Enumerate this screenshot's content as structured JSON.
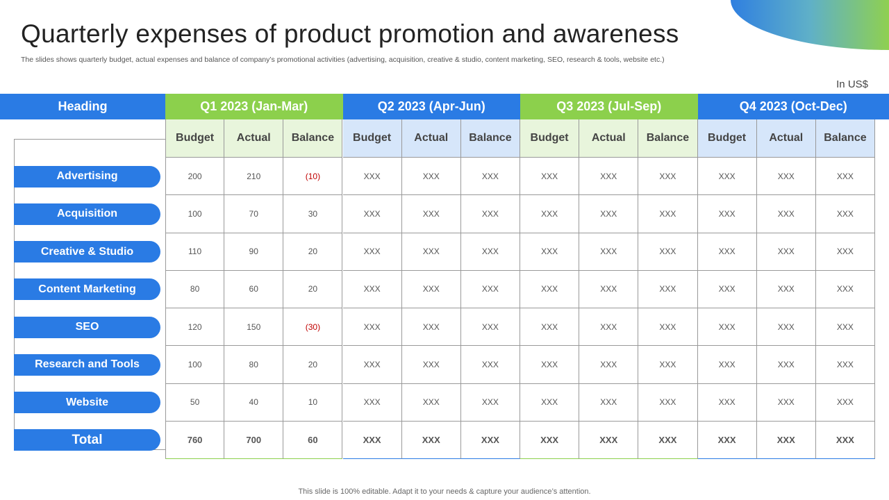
{
  "title": "Quarterly expenses of product promotion and awareness",
  "subtitle": "The slides shows quarterly budget, actual expenses and balance of company’s promotional activities (advertising, acquisition, creative & studio, content marketing, SEO, research & tools, website etc.)",
  "unit": "In US$",
  "heading": "Heading",
  "quarters": [
    "Q1 2023 (Jan-Mar)",
    "Q2 2023 (Apr-Jun)",
    "Q3 2023 (Jul-Sep)",
    "Q4 2023 (Oct-Dec)"
  ],
  "subheaders": [
    "Budget",
    "Actual",
    "Balance"
  ],
  "rows": [
    {
      "label": "Advertising",
      "values": [
        "200",
        "210",
        "(10)",
        "XXX",
        "XXX",
        "XXX",
        "XXX",
        "XXX",
        "XXX",
        "XXX",
        "XXX",
        "XXX"
      ]
    },
    {
      "label": "Acquisition",
      "values": [
        "100",
        "70",
        "30",
        "XXX",
        "XXX",
        "XXX",
        "XXX",
        "XXX",
        "XXX",
        "XXX",
        "XXX",
        "XXX"
      ]
    },
    {
      "label": "Creative & Studio",
      "values": [
        "110",
        "90",
        "20",
        "XXX",
        "XXX",
        "XXX",
        "XXX",
        "XXX",
        "XXX",
        "XXX",
        "XXX",
        "XXX"
      ]
    },
    {
      "label": "Content Marketing",
      "values": [
        "80",
        "60",
        "20",
        "XXX",
        "XXX",
        "XXX",
        "XXX",
        "XXX",
        "XXX",
        "XXX",
        "XXX",
        "XXX"
      ]
    },
    {
      "label": "SEO",
      "values": [
        "120",
        "150",
        "(30)",
        "XXX",
        "XXX",
        "XXX",
        "XXX",
        "XXX",
        "XXX",
        "XXX",
        "XXX",
        "XXX"
      ]
    },
    {
      "label": "Research and Tools",
      "values": [
        "100",
        "80",
        "20",
        "XXX",
        "XXX",
        "XXX",
        "XXX",
        "XXX",
        "XXX",
        "XXX",
        "XXX",
        "XXX"
      ]
    },
    {
      "label": "Website",
      "values": [
        "50",
        "40",
        "10",
        "XXX",
        "XXX",
        "XXX",
        "XXX",
        "XXX",
        "XXX",
        "XXX",
        "XXX",
        "XXX"
      ]
    },
    {
      "label": "Total",
      "values": [
        "760",
        "700",
        "60",
        "XXX",
        "XXX",
        "XXX",
        "XXX",
        "XXX",
        "XXX",
        "XXX",
        "XXX",
        "XXX"
      ]
    }
  ],
  "footer": "This slide is 100% editable. Adapt it to your needs & capture your audience’s attention."
}
